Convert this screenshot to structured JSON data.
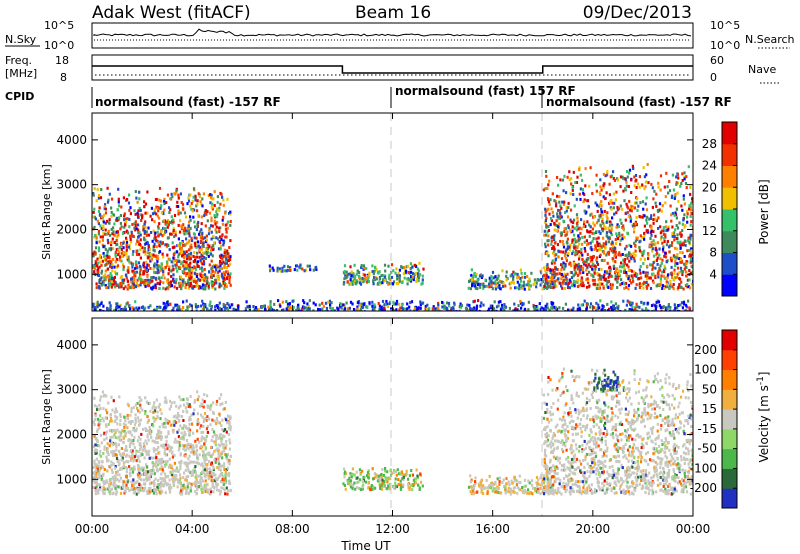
{
  "header": {
    "title": "Adak West (fitACF)",
    "beam": "Beam 16",
    "date": "09/Dec/2013"
  },
  "top_panels": {
    "nsky_label": "N.Sky",
    "nsearch_label": "N.Search",
    "nave_label": "Nave",
    "freq_label": "Freq.",
    "freq_unit": "[MHz]",
    "cpid_label": "CPID",
    "noise_ticks_left": [
      "10^5",
      "10^0"
    ],
    "noise_ticks_right": [
      "10^5",
      "10^0"
    ],
    "freq_ticks": [
      "18",
      "8"
    ],
    "nave_ticks": [
      "60",
      "0"
    ],
    "freq_trace": [
      {
        "start": "00:00",
        "end": "10:00",
        "level": "high"
      },
      {
        "start": "10:00",
        "end": "18:00",
        "level": "low"
      },
      {
        "start": "18:00",
        "end": "24:00",
        "level": "high"
      }
    ],
    "cpid_segments": [
      {
        "start": "00:00",
        "end": "12:00",
        "text": "normalsound (fast) -157 RF"
      },
      {
        "start": "12:00",
        "end": "18:00",
        "text": "normalsound (fast) 157 RF"
      },
      {
        "start": "18:00",
        "end": "24:00",
        "text": "normalsound (fast) -157 RF"
      }
    ]
  },
  "chart_data": [
    {
      "type": "heatmap",
      "name": "power",
      "ylabel": "Slant Range [km]",
      "xlabel": "Time UT",
      "x_ticks": [
        "00:00",
        "04:00",
        "08:00",
        "12:00",
        "16:00",
        "20:00",
        "00:00"
      ],
      "y_ticks": [
        1000,
        2000,
        3000,
        4000
      ],
      "ylim": [
        180,
        4600
      ],
      "xlim_hours": [
        0,
        24
      ],
      "colorbar_label": "Power [dB]",
      "colorbar_ticks": [
        4,
        8,
        12,
        16,
        20,
        24,
        28
      ],
      "colorbar_range": [
        0,
        30
      ],
      "colorbar_colors": [
        "#0000ff",
        "#1f4fc8",
        "#3f8a5c",
        "#35c06a",
        "#f0c000",
        "#ff8000",
        "#f23000",
        "#e00000"
      ],
      "echo_regions": [
        {
          "t": [
            0.0,
            5.5
          ],
          "range": [
            700,
            3000
          ],
          "level": "high"
        },
        {
          "t": [
            7.0,
            9.0
          ],
          "range": [
            1100,
            1250
          ],
          "level": "low"
        },
        {
          "t": [
            10.0,
            13.2
          ],
          "range": [
            800,
            1300
          ],
          "level": "medium"
        },
        {
          "t": [
            15.0,
            18.5
          ],
          "range": [
            700,
            1150
          ],
          "level": "medium"
        },
        {
          "t": [
            18.0,
            24.0
          ],
          "range": [
            700,
            3500
          ],
          "level": "high"
        },
        {
          "t": [
            0.0,
            24.0
          ],
          "range": [
            180,
            450
          ],
          "level": "low"
        }
      ]
    },
    {
      "type": "heatmap",
      "name": "velocity",
      "ylabel": "Slant Range [km]",
      "xlabel": "Time UT",
      "x_ticks": [
        "00:00",
        "04:00",
        "08:00",
        "12:00",
        "16:00",
        "20:00",
        "00:00"
      ],
      "y_ticks": [
        1000,
        2000,
        3000,
        4000
      ],
      "ylim": [
        180,
        4600
      ],
      "xlim_hours": [
        0,
        24
      ],
      "colorbar_label": "Velocity [m s",
      "colorbar_unit_sup": "-1",
      "colorbar_unit_close": "]",
      "colorbar_ticks": [
        200,
        100,
        50,
        15,
        -15,
        -50,
        -100,
        -200
      ],
      "colorbar_colors": [
        "#2030c0",
        "#2a6a3a",
        "#4cb84c",
        "#8ed86a",
        "#c8c8c0",
        "#f0b040",
        "#ff8000",
        "#ff4000",
        "#e00000"
      ],
      "echo_regions": [
        {
          "t": [
            0.0,
            5.5
          ],
          "range": [
            700,
            3000
          ],
          "dominant": "ground scatter"
        },
        {
          "t": [
            10.0,
            13.2
          ],
          "range": [
            800,
            1300
          ],
          "dominant": "positive"
        },
        {
          "t": [
            15.0,
            18.5
          ],
          "range": [
            700,
            1150
          ],
          "dominant": "negative"
        },
        {
          "t": [
            20.0,
            21.0
          ],
          "range": [
            3000,
            3500
          ],
          "dominant": "high positive"
        },
        {
          "t": [
            18.0,
            24.0
          ],
          "range": [
            700,
            3500
          ],
          "dominant": "ground scatter"
        }
      ]
    }
  ]
}
